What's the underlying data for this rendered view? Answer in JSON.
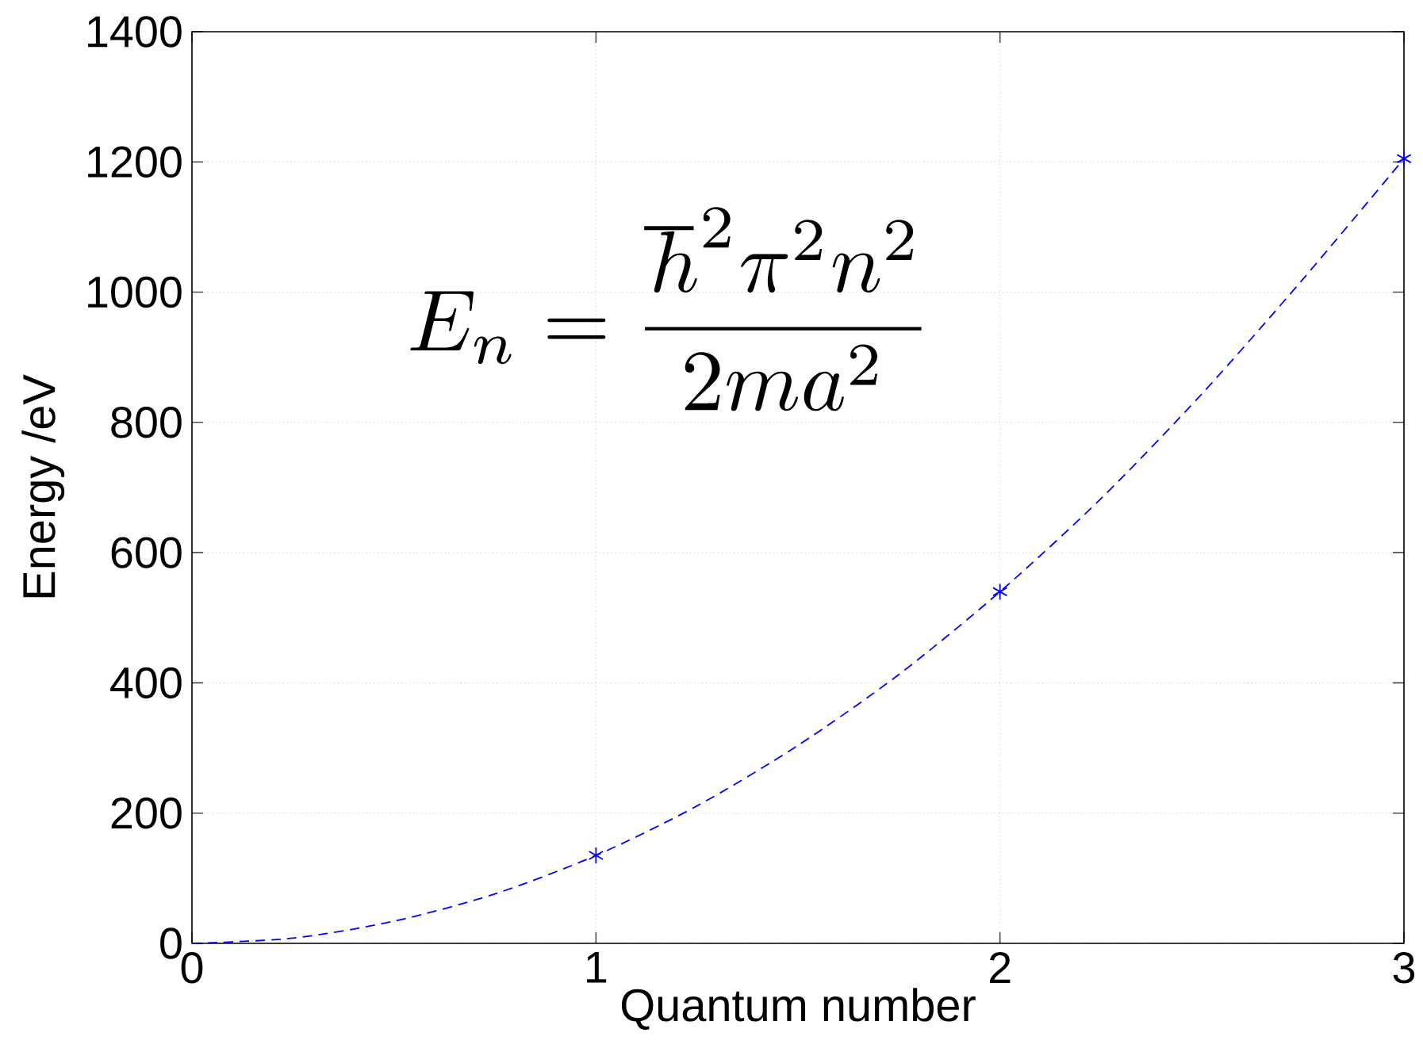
{
  "chart_data": {
    "type": "line",
    "xlabel": "Quantum number",
    "ylabel": "Energy /eV",
    "xlim": [
      0,
      3
    ],
    "xticks": [
      0,
      1,
      2,
      3
    ],
    "ylim": [
      0,
      1400
    ],
    "yticks": [
      0,
      200,
      400,
      600,
      800,
      1000,
      1200,
      1400
    ],
    "grid": true,
    "series": [
      {
        "color": "#0000ff",
        "marker": "none",
        "line_style": "dashed",
        "x": [
          0,
          0.25,
          0.5,
          0.75,
          1,
          1.25,
          1.5,
          1.75,
          2,
          2.25,
          2.5,
          2.75,
          3
        ],
        "values": [
          0,
          8,
          34,
          76,
          135,
          211,
          304,
          413,
          540,
          683,
          844,
          1020,
          1205
        ]
      },
      {
        "type": "scatter",
        "color": "#0000ff",
        "marker": "cross",
        "x": [
          1,
          2,
          3
        ],
        "values": [
          135,
          540,
          1205
        ]
      }
    ],
    "annotations": [
      "E_n = \\frac{\\hbar^2\\pi^2n^2}{2ma^2}"
    ]
  }
}
